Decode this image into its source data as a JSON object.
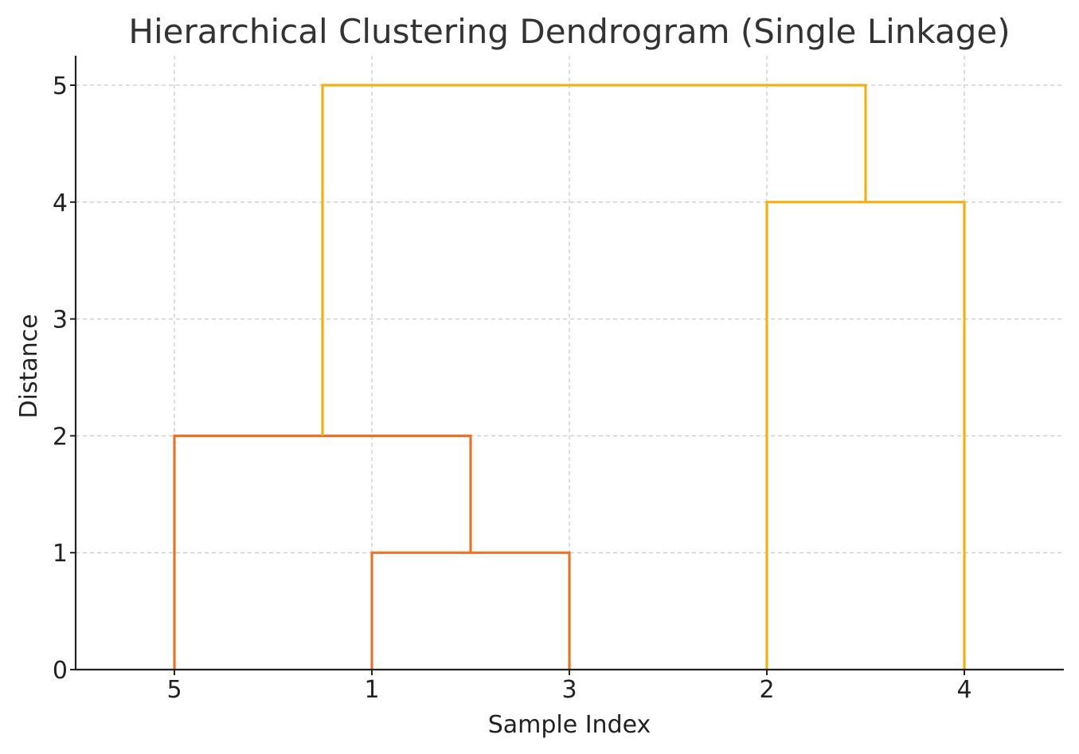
{
  "chart_data": {
    "type": "dendrogram",
    "title": "Hierarchical Clustering Dendrogram (Single Linkage)",
    "xlabel": "Sample Index",
    "ylabel": "Distance",
    "leaf_order": [
      "5",
      "1",
      "3",
      "2",
      "4"
    ],
    "y_ticks": [
      "0",
      "1",
      "2",
      "3",
      "4",
      "5"
    ],
    "ylim": [
      0,
      5.25
    ],
    "grid": true,
    "merges": [
      {
        "left": "1",
        "right": "3",
        "distance": 1,
        "color": "#e8712b"
      },
      {
        "left": "5",
        "right": "1+3",
        "distance": 2,
        "color": "#e8712b"
      },
      {
        "left": "2",
        "right": "4",
        "distance": 4,
        "color": "#f4b013"
      },
      {
        "left": "5+1+3",
        "right": "2+4",
        "distance": 5,
        "color": "#f4b013"
      }
    ],
    "colors": {
      "cluster_a": "#e8712b",
      "cluster_b": "#f4b013",
      "grid": "#cccccc",
      "axis": "#222222"
    }
  }
}
